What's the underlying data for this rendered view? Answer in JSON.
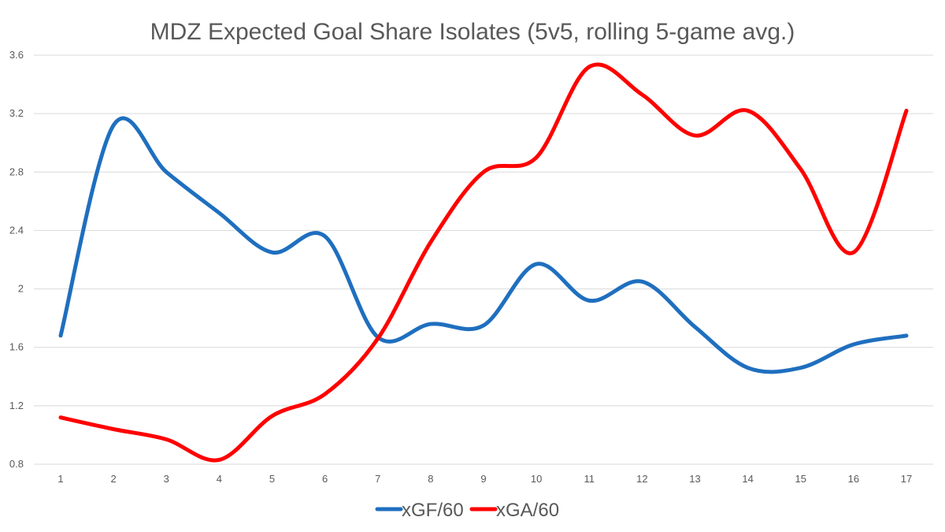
{
  "chart_data": {
    "type": "line",
    "title": "MDZ Expected Goal Share Isolates (5v5, rolling 5-game avg.)",
    "xlabel": "",
    "ylabel": "",
    "categories": [
      "1",
      "2",
      "3",
      "4",
      "5",
      "6",
      "7",
      "8",
      "9",
      "10",
      "11",
      "12",
      "13",
      "14",
      "15",
      "16",
      "17"
    ],
    "ylim": [
      0.8,
      3.6
    ],
    "yticks": [
      "0.8",
      "1.2",
      "1.6",
      "2",
      "2.4",
      "2.8",
      "3.2",
      "3.6"
    ],
    "grid": "horizontal",
    "legend_position": "bottom",
    "series": [
      {
        "name": "xGF/60",
        "color": "#1f6fbf",
        "values": [
          1.68,
          3.12,
          2.8,
          2.52,
          2.25,
          2.36,
          1.67,
          1.76,
          1.75,
          2.17,
          1.92,
          2.05,
          1.74,
          1.46,
          1.46,
          1.62,
          1.68
        ]
      },
      {
        "name": "xGA/60",
        "color": "#ff0000",
        "values": [
          1.12,
          1.04,
          0.97,
          0.83,
          1.13,
          1.28,
          1.66,
          2.32,
          2.8,
          2.9,
          3.52,
          3.33,
          3.05,
          3.22,
          2.82,
          2.25,
          3.22
        ]
      }
    ]
  }
}
